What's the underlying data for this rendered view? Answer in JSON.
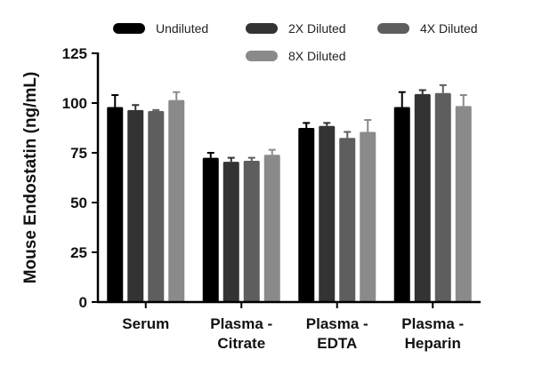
{
  "chart_data": {
    "type": "bar",
    "title": "",
    "xlabel": "",
    "ylabel": "Mouse Endostatin (ng/mL)",
    "ylim": [
      0,
      125
    ],
    "yticks": [
      0,
      25,
      50,
      75,
      100,
      125
    ],
    "grid": false,
    "legend_position": "top",
    "categories": [
      [
        "Serum"
      ],
      [
        "Plasma -",
        "Citrate"
      ],
      [
        "Plasma -",
        "EDTA"
      ],
      [
        "Plasma -",
        "Heparin"
      ]
    ],
    "series": [
      {
        "name": "Undiluted",
        "color": "#000000",
        "values": [
          98,
          72.5,
          87.5,
          98
        ],
        "errors": [
          6,
          2.5,
          2.5,
          7.5
        ]
      },
      {
        "name": "2X Diluted",
        "color": "#333333",
        "values": [
          96.5,
          70.5,
          88.5,
          104.5
        ],
        "errors": [
          2.5,
          2,
          1.5,
          2
        ]
      },
      {
        "name": "4X Diluted",
        "color": "#5e5e5e",
        "values": [
          96,
          71,
          82.5,
          105
        ],
        "errors": [
          0.5,
          1.5,
          3,
          4
        ]
      },
      {
        "name": "8X Diluted",
        "color": "#8a8a8a",
        "values": [
          101.5,
          74,
          85.5,
          98.5
        ],
        "errors": [
          4,
          2.5,
          6,
          5.5
        ]
      }
    ]
  }
}
